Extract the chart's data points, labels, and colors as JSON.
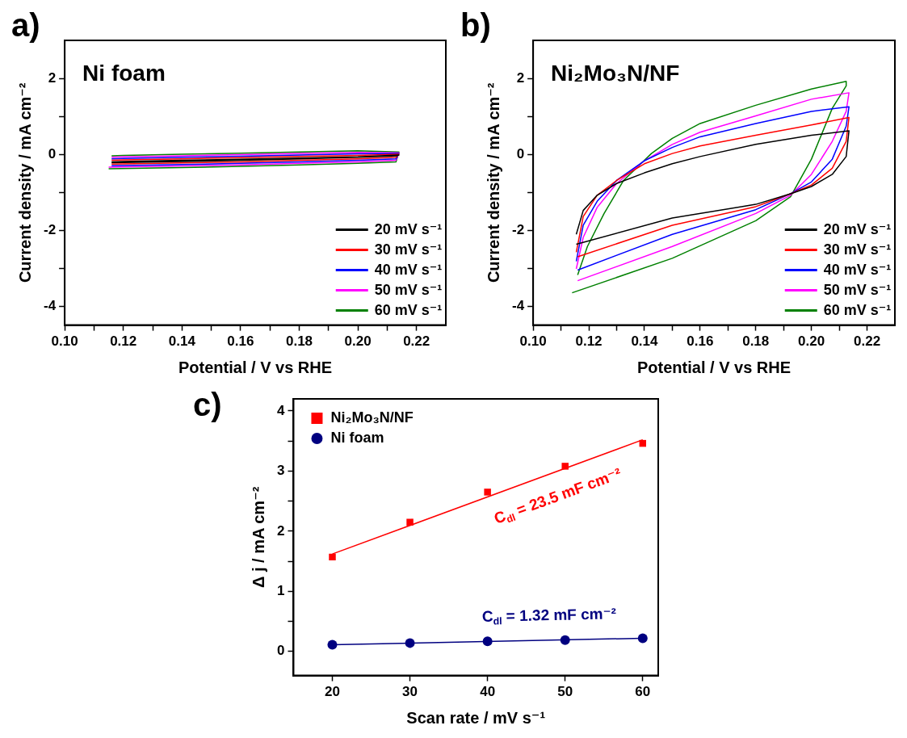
{
  "chart_data": [
    {
      "type": "line",
      "title": "Ni foam",
      "annotations": [
        "a)"
      ],
      "xlabel": "Potential / V vs RHE",
      "ylabel": "Current density / mA cm⁻²",
      "xlim": [
        0.1,
        0.23
      ],
      "ylim": [
        -4.5,
        3
      ],
      "xticks": [
        {
          "value": 0.1,
          "label": "0.10"
        },
        {
          "value": 0.11,
          "label": null
        },
        {
          "value": 0.12,
          "label": "0.12"
        },
        {
          "value": 0.13,
          "label": null
        },
        {
          "value": 0.14,
          "label": "0.14"
        },
        {
          "value": 0.15,
          "label": null
        },
        {
          "value": 0.16,
          "label": "0.16"
        },
        {
          "value": 0.17,
          "label": null
        },
        {
          "value": 0.18,
          "label": "0.18"
        },
        {
          "value": 0.19,
          "label": null
        },
        {
          "value": 0.2,
          "label": "0.20"
        },
        {
          "value": 0.21,
          "label": null
        },
        {
          "value": 0.22,
          "label": "0.22"
        }
      ],
      "yticks": [
        -4,
        {
          "value": -3,
          "label": null
        },
        -2,
        {
          "value": -1,
          "label": null
        },
        0,
        {
          "value": 1,
          "label": null
        },
        2
      ],
      "grid": false,
      "legend": "bottom right",
      "marker": "none",
      "line_style": "solid",
      "series": [
        {
          "name": "20 mV s⁻¹",
          "color": "#000000",
          "x": [
            0.116,
            0.14,
            0.16,
            0.18,
            0.2,
            0.213,
            0.214,
            0.2,
            0.18,
            0.16,
            0.14,
            0.12,
            0.116
          ],
          "values": [
            -0.22,
            -0.19,
            -0.16,
            -0.12,
            -0.08,
            -0.04,
            -0.02,
            -0.07,
            -0.1,
            -0.13,
            -0.16,
            -0.19,
            -0.2
          ]
        },
        {
          "name": "30 mV s⁻¹",
          "color": "#ff0000",
          "x": [
            0.116,
            0.14,
            0.16,
            0.18,
            0.2,
            0.213,
            0.214,
            0.2,
            0.18,
            0.16,
            0.14,
            0.12,
            0.116
          ],
          "values": [
            -0.26,
            -0.23,
            -0.2,
            -0.16,
            -0.12,
            -0.08,
            0,
            -0.03,
            -0.06,
            -0.09,
            -0.12,
            -0.15,
            -0.16
          ]
        },
        {
          "name": "40 mV s⁻¹",
          "color": "#0000ff",
          "x": [
            0.116,
            0.14,
            0.16,
            0.18,
            0.2,
            0.213,
            0.214,
            0.2,
            0.18,
            0.16,
            0.14,
            0.12,
            0.116
          ],
          "values": [
            -0.3,
            -0.27,
            -0.24,
            -0.2,
            -0.16,
            -0.12,
            0.02,
            0.01,
            -0.02,
            -0.05,
            -0.08,
            -0.11,
            -0.12
          ]
        },
        {
          "name": "50 mV s⁻¹",
          "color": "#ff00ff",
          "x": [
            0.115,
            0.14,
            0.16,
            0.18,
            0.2,
            0.213,
            0.214,
            0.2,
            0.18,
            0.16,
            0.14,
            0.12,
            0.116
          ],
          "values": [
            -0.34,
            -0.31,
            -0.28,
            -0.24,
            -0.2,
            -0.16,
            0.04,
            0.05,
            0.02,
            -0.01,
            -0.04,
            -0.07,
            -0.08
          ]
        },
        {
          "name": "60 mV s⁻¹",
          "color": "#008000",
          "x": [
            0.115,
            0.14,
            0.16,
            0.18,
            0.2,
            0.213,
            0.214,
            0.2,
            0.18,
            0.16,
            0.14,
            0.12,
            0.116
          ],
          "values": [
            -0.38,
            -0.35,
            -0.32,
            -0.28,
            -0.24,
            -0.2,
            0.06,
            0.09,
            0.06,
            0.03,
            0,
            -0.03,
            -0.04
          ]
        }
      ]
    },
    {
      "type": "line",
      "title": "Ni₂Mo₃N/NF",
      "annotations": [
        "b)"
      ],
      "xlabel": "Potential / V vs RHE",
      "ylabel": "Current density / mA cm⁻²",
      "xlim": [
        0.1,
        0.23
      ],
      "ylim": [
        -4.5,
        3
      ],
      "xticks": [
        {
          "value": 0.1,
          "label": "0.10"
        },
        {
          "value": 0.11,
          "label": null
        },
        {
          "value": 0.12,
          "label": "0.12"
        },
        {
          "value": 0.13,
          "label": null
        },
        {
          "value": 0.14,
          "label": "0.14"
        },
        {
          "value": 0.15,
          "label": null
        },
        {
          "value": 0.16,
          "label": "0.16"
        },
        {
          "value": 0.17,
          "label": null
        },
        {
          "value": 0.18,
          "label": "0.18"
        },
        {
          "value": 0.19,
          "label": null
        },
        {
          "value": 0.2,
          "label": "0.20"
        },
        {
          "value": 0.21,
          "label": null
        },
        {
          "value": 0.22,
          "label": "0.22"
        }
      ],
      "yticks": [
        -4,
        {
          "value": -3,
          "label": null
        },
        -2,
        {
          "value": -1,
          "label": null
        },
        0,
        {
          "value": 1,
          "label": null
        },
        2
      ],
      "grid": false,
      "legend": "bottom right",
      "marker": "none",
      "line_style": "solid",
      "series": [
        {
          "name": "20 mV s⁻¹",
          "color": "#000000",
          "x": [
            0.1155,
            0.15,
            0.18,
            0.1925,
            0.2,
            0.2075,
            0.2125,
            0.2135,
            0.2,
            0.18,
            0.16,
            0.15,
            0.14,
            0.13,
            0.123,
            0.118,
            0.1155
          ],
          "values": [
            -2.37,
            -1.68,
            -1.32,
            -1.04,
            -0.85,
            -0.53,
            -0.06,
            0.62,
            0.5,
            0.26,
            -0.06,
            -0.25,
            -0.49,
            -0.77,
            -1.08,
            -1.48,
            -2.11
          ]
        },
        {
          "name": "30 mV s⁻¹",
          "color": "#ff0000",
          "x": [
            0.116,
            0.15,
            0.18,
            0.1925,
            0.2,
            0.2075,
            0.2125,
            0.2135,
            0.2,
            0.18,
            0.16,
            0.15,
            0.14,
            0.13,
            0.123,
            0.118,
            0.1155
          ],
          "values": [
            -2.7,
            -1.87,
            -1.38,
            -1.04,
            -0.81,
            -0.37,
            0.34,
            0.97,
            0.77,
            0.5,
            0.22,
            0.02,
            -0.25,
            -0.69,
            -1.08,
            -1.64,
            -2.58
          ]
        },
        {
          "name": "40 mV s⁻¹",
          "color": "#0000ff",
          "x": [
            0.116,
            0.15,
            0.18,
            0.1925,
            0.2,
            0.2075,
            0.2125,
            0.2135,
            0.2,
            0.18,
            0.16,
            0.15,
            0.14,
            0.13,
            0.123,
            0.118,
            0.1155
          ],
          "values": [
            -3.05,
            -2.11,
            -1.46,
            -1.04,
            -0.73,
            -0.13,
            0.74,
            1.25,
            1.13,
            0.81,
            0.46,
            0.18,
            -0.17,
            -0.69,
            -1.24,
            -1.87,
            -2.82
          ]
        },
        {
          "name": "50 mV s⁻¹",
          "color": "#ff00ff",
          "x": [
            0.116,
            0.15,
            0.18,
            0.1925,
            0.2,
            0.2075,
            0.2125,
            0.2135,
            0.2,
            0.18,
            0.16,
            0.15,
            0.14,
            0.13,
            0.123,
            0.118,
            0.1155
          ],
          "values": [
            -3.33,
            -2.43,
            -1.56,
            -1.08,
            -0.53,
            0.34,
            1.13,
            1.62,
            1.45,
            1.01,
            0.58,
            0.26,
            -0.17,
            -0.77,
            -1.4,
            -2.19,
            -3.02
          ]
        },
        {
          "name": "60 mV s⁻¹",
          "color": "#008000",
          "x": [
            0.114,
            0.15,
            0.18,
            0.1925,
            0.2,
            0.2075,
            0.2125,
            0.2125,
            0.2,
            0.18,
            0.16,
            0.15,
            0.1425,
            0.1325,
            0.1255,
            0.1195,
            0.116
          ],
          "values": [
            -3.65,
            -2.74,
            -1.75,
            -1.12,
            -0.13,
            1.21,
            1.8,
            1.92,
            1.72,
            1.29,
            0.81,
            0.42,
            0.02,
            -0.69,
            -1.56,
            -2.43,
            -3.18
          ]
        }
      ]
    },
    {
      "type": "scatter",
      "annotations": [
        "c)",
        "C$_{dl}$ = 23.5 mF cm⁻²",
        "C$_{dl}$ = 1.32 mF cm⁻²"
      ],
      "xlabel": "Scan rate / mV s⁻¹",
      "ylabel": "Δ j / mA cm⁻²",
      "xlim": [
        15,
        62
      ],
      "ylim": [
        -0.4,
        4.2
      ],
      "xticks": [
        20,
        30,
        40,
        50,
        60
      ],
      "yticks": [
        0,
        {
          "value": 0.5,
          "label": null
        },
        1,
        {
          "value": 1.5,
          "label": null
        },
        2,
        {
          "value": 2.5,
          "label": null
        },
        3,
        {
          "value": 3.5,
          "label": null
        },
        4
      ],
      "grid": false,
      "legend": "top left",
      "x": [
        20,
        30,
        40,
        50,
        60
      ],
      "series": [
        {
          "name": "Ni₂Mo₃N/NF",
          "color": "#ff0000",
          "marker": "square",
          "values": [
            1.57,
            2.15,
            2.65,
            3.08,
            3.46
          ]
        },
        {
          "name": "Ni foam",
          "color": "#000080",
          "marker": "circle",
          "values": [
            0.11,
            0.14,
            0.17,
            0.19,
            0.22
          ]
        },
        {
          "type": "line",
          "color": "#ff0000",
          "marker": "none",
          "x": [
            20,
            60
          ],
          "values": [
            1.62,
            3.52
          ]
        },
        {
          "type": "line",
          "color": "#000080",
          "marker": "none",
          "x": [
            20,
            60
          ],
          "values": [
            0.11,
            0.22
          ]
        }
      ]
    }
  ]
}
